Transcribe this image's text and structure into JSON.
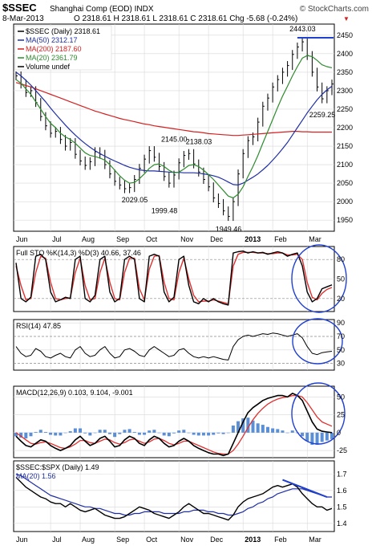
{
  "header": {
    "symbol": "$SSEC",
    "name": "Shanghai Comp (EOD) INDX",
    "watermark": "© StockCharts.com",
    "date": "8-Mar-2013",
    "ohlc": "O 2318.61  H 2318.61  L 2318.61  C 2318.61  Chg -5.68 (-0.24%)",
    "chg_direction": "▼"
  },
  "colors": {
    "price_bars": "#000000",
    "ma50": "#1f2fa3",
    "ma200": "#d42020",
    "ma20": "#2e8b2e",
    "k_line": "#000000",
    "d_line": "#e03030",
    "hist": "#5a8fd6",
    "annot_circle": "#2040d0",
    "annot_line": "#2040d0"
  },
  "chart_data": [
    {
      "type": "line",
      "panel": "price",
      "legend": [
        "$SSEC (Daily) 2318.61",
        "MA(50) 2312.17",
        "MA(200) 2187.60",
        "MA(20) 2361.79",
        "Volume undef"
      ],
      "x_labels": [
        "Jun",
        "Jul",
        "Aug",
        "Sep",
        "Oct",
        "Nov",
        "Dec",
        "2013",
        "Feb",
        "Mar"
      ],
      "y_ticks": [
        1950,
        2000,
        2050,
        2100,
        2150,
        2200,
        2250,
        2300,
        2350,
        2400,
        2450
      ],
      "ylim": [
        1920,
        2480
      ],
      "annotations": [
        "2145.00",
        "2138.03",
        "2029.05",
        "1999.48",
        "1949.46",
        "2443.03",
        "2259.25"
      ],
      "close": [
        2340,
        2318,
        2295,
        2300,
        2268,
        2230,
        2205,
        2185,
        2190,
        2168,
        2150,
        2160,
        2128,
        2110,
        2098,
        2108,
        2135,
        2128,
        2100,
        2075,
        2055,
        2045,
        2035,
        2038,
        2060,
        2090,
        2115,
        2138,
        2120,
        2095,
        2068,
        2050,
        2072,
        2105,
        2125,
        2130,
        2102,
        2080,
        2060,
        2040,
        2010,
        1995,
        1975,
        1960,
        2000,
        2075,
        2130,
        2165,
        2175,
        2215,
        2258,
        2280,
        2310,
        2330,
        2350,
        2368,
        2398,
        2418,
        2432,
        2395,
        2350,
        2310,
        2278,
        2300,
        2318
      ],
      "ma50": [
        2350,
        2340,
        2328,
        2315,
        2300,
        2285,
        2270,
        2253,
        2237,
        2222,
        2207,
        2193,
        2180,
        2168,
        2157,
        2147,
        2138,
        2130,
        2123,
        2116,
        2110,
        2104,
        2098,
        2093,
        2089,
        2086,
        2084,
        2083,
        2083,
        2082,
        2081,
        2080,
        2079,
        2079,
        2078,
        2078,
        2078,
        2077,
        2075,
        2073,
        2070,
        2066,
        2060,
        2053,
        2046,
        2045,
        2050,
        2058,
        2066,
        2075,
        2086,
        2098,
        2112,
        2127,
        2143,
        2160,
        2180,
        2200,
        2220,
        2240,
        2258,
        2275,
        2290,
        2302,
        2312
      ],
      "ma200": [
        2322,
        2318,
        2314,
        2310,
        2305,
        2300,
        2295,
        2290,
        2285,
        2280,
        2275,
        2270,
        2265,
        2260,
        2255,
        2250,
        2245,
        2241,
        2237,
        2233,
        2229,
        2225,
        2222,
        2219,
        2216,
        2213,
        2210,
        2208,
        2205,
        2203,
        2201,
        2199,
        2197,
        2195,
        2193,
        2191,
        2189,
        2188,
        2186,
        2184,
        2183,
        2182,
        2181,
        2180,
        2179,
        2179,
        2180,
        2181,
        2182,
        2183,
        2184,
        2185,
        2186,
        2187,
        2188,
        2189,
        2190,
        2190,
        2189,
        2189,
        2188,
        2188,
        2188,
        2188,
        2188
      ],
      "ma20": [
        2330,
        2320,
        2305,
        2290,
        2270,
        2250,
        2230,
        2212,
        2200,
        2185,
        2175,
        2168,
        2158,
        2145,
        2132,
        2125,
        2122,
        2118,
        2112,
        2100,
        2085,
        2070,
        2058,
        2050,
        2052,
        2062,
        2075,
        2090,
        2100,
        2102,
        2095,
        2085,
        2078,
        2080,
        2088,
        2098,
        2100,
        2095,
        2085,
        2073,
        2060,
        2045,
        2030,
        2015,
        2010,
        2020,
        2040,
        2068,
        2095,
        2125,
        2158,
        2190,
        2222,
        2255,
        2285,
        2312,
        2340,
        2365,
        2388,
        2395,
        2392,
        2382,
        2370,
        2365,
        2362
      ]
    },
    {
      "type": "line",
      "panel": "stochastic",
      "legend": [
        "Full STO %K(14,3) %D(3) 40.66, 37.46"
      ],
      "y_ticks": [
        20,
        50,
        80
      ],
      "ylim": [
        0,
        100
      ],
      "k": [
        75,
        20,
        15,
        22,
        85,
        88,
        80,
        30,
        15,
        18,
        22,
        20,
        80,
        85,
        20,
        15,
        25,
        80,
        85,
        30,
        15,
        20,
        80,
        85,
        80,
        20,
        15,
        85,
        88,
        85,
        30,
        15,
        22,
        80,
        85,
        40,
        15,
        12,
        20,
        15,
        20,
        15,
        12,
        10,
        90,
        92,
        93,
        90,
        92,
        90,
        91,
        88,
        90,
        92,
        90,
        85,
        88,
        90,
        70,
        30,
        15,
        20,
        35,
        38,
        41
      ],
      "d": [
        70,
        40,
        18,
        20,
        60,
        85,
        82,
        45,
        20,
        18,
        20,
        21,
        60,
        82,
        40,
        18,
        20,
        60,
        82,
        45,
        20,
        18,
        60,
        82,
        82,
        35,
        18,
        65,
        85,
        86,
        45,
        20,
        18,
        60,
        82,
        50,
        25,
        15,
        16,
        16,
        18,
        16,
        14,
        12,
        70,
        88,
        91,
        91,
        91,
        90,
        90,
        89,
        89,
        90,
        90,
        87,
        87,
        88,
        80,
        45,
        22,
        18,
        28,
        34,
        37
      ]
    },
    {
      "type": "line",
      "panel": "rsi",
      "legend": [
        "RSI(14) 47.85"
      ],
      "y_ticks": [
        30,
        50,
        70,
        90
      ],
      "ylim": [
        20,
        95
      ],
      "values": [
        55,
        45,
        40,
        42,
        52,
        48,
        40,
        38,
        42,
        45,
        40,
        38,
        50,
        55,
        45,
        40,
        42,
        50,
        55,
        45,
        38,
        40,
        50,
        52,
        48,
        42,
        40,
        50,
        55,
        50,
        45,
        40,
        42,
        50,
        52,
        45,
        40,
        38,
        40,
        38,
        40,
        38,
        36,
        35,
        55,
        65,
        70,
        72,
        70,
        72,
        74,
        73,
        75,
        74,
        72,
        70,
        72,
        74,
        68,
        55,
        45,
        43,
        46,
        47,
        48
      ]
    },
    {
      "type": "line",
      "panel": "macd",
      "legend": [
        "MACD(12,26,9) 0.103, 9.104, -9.001"
      ],
      "y_ticks": [
        -25,
        0,
        25,
        50
      ],
      "ylim": [
        -35,
        65
      ],
      "macd": [
        -5,
        -12,
        -18,
        -20,
        -15,
        -10,
        -12,
        -18,
        -22,
        -25,
        -22,
        -18,
        -10,
        -5,
        -12,
        -18,
        -15,
        -8,
        -5,
        -12,
        -20,
        -18,
        -10,
        -5,
        -8,
        -15,
        -18,
        -10,
        -5,
        -8,
        -15,
        -20,
        -18,
        -12,
        -8,
        -12,
        -18,
        -22,
        -25,
        -28,
        -30,
        -30,
        -32,
        -30,
        -15,
        0,
        15,
        28,
        35,
        40,
        45,
        48,
        50,
        52,
        52,
        50,
        55,
        52,
        45,
        30,
        15,
        5,
        2,
        1,
        0.1
      ],
      "signal": [
        0,
        -5,
        -10,
        -15,
        -16,
        -14,
        -13,
        -15,
        -18,
        -21,
        -22,
        -20,
        -16,
        -11,
        -11,
        -14,
        -15,
        -12,
        -9,
        -10,
        -14,
        -16,
        -14,
        -10,
        -9,
        -12,
        -15,
        -13,
        -9,
        -8,
        -11,
        -15,
        -17,
        -15,
        -12,
        -12,
        -15,
        -18,
        -21,
        -24,
        -27,
        -29,
        -30,
        -30,
        -25,
        -16,
        -5,
        7,
        18,
        27,
        34,
        40,
        44,
        47,
        49,
        50,
        52,
        52,
        50,
        42,
        32,
        22,
        15,
        12,
        9.1
      ],
      "histogram": [
        -5,
        -7,
        -8,
        -5,
        1,
        4,
        1,
        -3,
        -4,
        -4,
        0,
        2,
        6,
        6,
        -1,
        -4,
        0,
        4,
        4,
        -2,
        -6,
        -2,
        4,
        5,
        1,
        -3,
        -3,
        3,
        4,
        0,
        -4,
        -5,
        -1,
        3,
        4,
        0,
        -3,
        -4,
        -4,
        -4,
        -3,
        -1,
        -2,
        0,
        10,
        16,
        20,
        21,
        17,
        13,
        11,
        8,
        6,
        5,
        3,
        0,
        3,
        0,
        -5,
        -12,
        -17,
        -17,
        -13,
        -11,
        -9
      ]
    },
    {
      "type": "line",
      "panel": "ratio",
      "legend": [
        "$SSEC:$SPX (Daily) 1.49",
        "MA(20) 1.56"
      ],
      "y_ticks": [
        1.4,
        1.5,
        1.6,
        1.7
      ],
      "ylim": [
        1.35,
        1.78
      ],
      "values": [
        1.68,
        1.65,
        1.62,
        1.6,
        1.58,
        1.56,
        1.55,
        1.53,
        1.52,
        1.52,
        1.5,
        1.52,
        1.5,
        1.48,
        1.47,
        1.48,
        1.49,
        1.47,
        1.45,
        1.44,
        1.43,
        1.43,
        1.44,
        1.46,
        1.48,
        1.5,
        1.49,
        1.48,
        1.46,
        1.45,
        1.44,
        1.43,
        1.45,
        1.47,
        1.5,
        1.52,
        1.5,
        1.48,
        1.46,
        1.46,
        1.45,
        1.44,
        1.43,
        1.42,
        1.45,
        1.5,
        1.53,
        1.55,
        1.56,
        1.57,
        1.58,
        1.6,
        1.62,
        1.63,
        1.62,
        1.63,
        1.64,
        1.62,
        1.58,
        1.55,
        1.52,
        1.5,
        1.5,
        1.48,
        1.49
      ],
      "ma20": [
        1.7,
        1.69,
        1.67,
        1.65,
        1.63,
        1.61,
        1.59,
        1.57,
        1.56,
        1.55,
        1.54,
        1.53,
        1.52,
        1.51,
        1.5,
        1.5,
        1.49,
        1.49,
        1.48,
        1.47,
        1.46,
        1.46,
        1.45,
        1.45,
        1.46,
        1.46,
        1.47,
        1.47,
        1.47,
        1.47,
        1.46,
        1.46,
        1.46,
        1.46,
        1.47,
        1.47,
        1.48,
        1.48,
        1.48,
        1.47,
        1.47,
        1.46,
        1.46,
        1.45,
        1.45,
        1.46,
        1.47,
        1.49,
        1.5,
        1.52,
        1.53,
        1.55,
        1.56,
        1.58,
        1.59,
        1.6,
        1.61,
        1.61,
        1.61,
        1.6,
        1.59,
        1.58,
        1.57,
        1.56,
        1.56
      ]
    }
  ]
}
